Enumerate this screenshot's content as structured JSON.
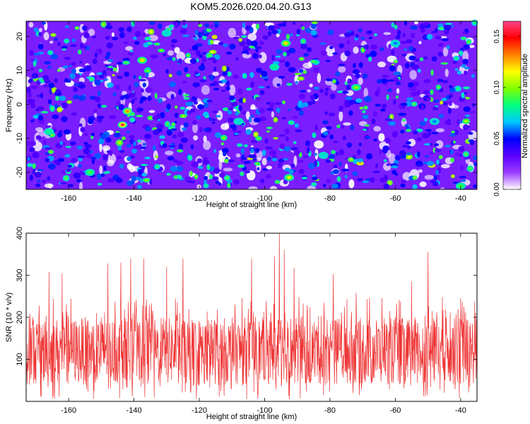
{
  "title": "KOM5.2026.020.04.20.G13",
  "chart_data": [
    {
      "type": "heatmap",
      "name": "spectrogram",
      "xlabel": "Height of straight line (km)",
      "ylabel": "Frequency (Hz)",
      "xlim": [
        -173,
        -35
      ],
      "ylim": [
        -25,
        24.5
      ],
      "xticks": [
        -160,
        -140,
        -120,
        -100,
        -80,
        -60,
        -40
      ],
      "yticks": [
        -20,
        -10,
        0,
        10,
        20
      ],
      "colorbar": {
        "label": "Normalized spectral amplitude",
        "range": [
          0,
          0.165
        ],
        "ticks": [
          "0.00",
          "0.05",
          "0.10",
          "0.15"
        ],
        "tick_values": [
          0,
          0.05,
          0.1,
          0.15
        ],
        "colormap": [
          "#ffffff",
          "#9b3dff",
          "#5a00ff",
          "#0000ff",
          "#00c8ff",
          "#00ff80",
          "#80ff00",
          "#ffff00",
          "#ff8000",
          "#ff0000",
          "#ff4488"
        ]
      },
      "peaks": [
        {
          "x": -143.5,
          "y": -6,
          "value": 0.16
        },
        {
          "x": -142,
          "y": -2,
          "value": 0.13
        },
        {
          "x": -137.5,
          "y": 13,
          "value": 0.12
        },
        {
          "x": -93.5,
          "y": 18,
          "value": 0.12
        },
        {
          "x": -92.5,
          "y": -21.5,
          "value": 0.11
        },
        {
          "x": -72,
          "y": 5,
          "value": 0.1
        },
        {
          "x": -153.5,
          "y": -20,
          "value": 0.09
        },
        {
          "x": -40,
          "y": -24,
          "value": 0.09
        },
        {
          "x": -97,
          "y": 11,
          "value": 0.08
        },
        {
          "x": -166,
          "y": -8,
          "value": 0.08
        },
        {
          "x": -130,
          "y": 21,
          "value": 0.07
        },
        {
          "x": -108,
          "y": -5,
          "value": 0.07
        },
        {
          "x": -82,
          "y": -15,
          "value": 0.07
        },
        {
          "x": -60,
          "y": 18,
          "value": 0.06
        },
        {
          "x": -48,
          "y": -5,
          "value": 0.06
        }
      ],
      "background_level": 0.025
    },
    {
      "type": "line",
      "name": "snr",
      "xlabel": "Height of straight line (km)",
      "ylabel": "SNR (10 * v/v)",
      "xlim": [
        -173,
        -35
      ],
      "ylim": [
        0,
        400
      ],
      "xticks": [
        -160,
        -140,
        -120,
        -100,
        -80,
        -60,
        -40
      ],
      "yticks": [
        100,
        200,
        300,
        400
      ],
      "series": [
        {
          "name": "SNR",
          "color": "#ee3333"
        }
      ],
      "x_step": 0.1,
      "typical_range": [
        40,
        200
      ],
      "peaks": [
        {
          "x": -171,
          "y": 200
        },
        {
          "x": -166,
          "y": 308
        },
        {
          "x": -162,
          "y": 305
        },
        {
          "x": -148,
          "y": 328
        },
        {
          "x": -144,
          "y": 330
        },
        {
          "x": -141,
          "y": 340
        },
        {
          "x": -137,
          "y": 340
        },
        {
          "x": -130,
          "y": 320
        },
        {
          "x": -125,
          "y": 340
        },
        {
          "x": -104,
          "y": 340
        },
        {
          "x": -97,
          "y": 345
        },
        {
          "x": -95.5,
          "y": 400
        },
        {
          "x": -94,
          "y": 360
        },
        {
          "x": -91,
          "y": 318
        },
        {
          "x": -79,
          "y": 303
        },
        {
          "x": -72,
          "y": 258
        },
        {
          "x": -55,
          "y": 285
        },
        {
          "x": -50,
          "y": 355
        },
        {
          "x": -40,
          "y": 245
        }
      ]
    }
  ]
}
